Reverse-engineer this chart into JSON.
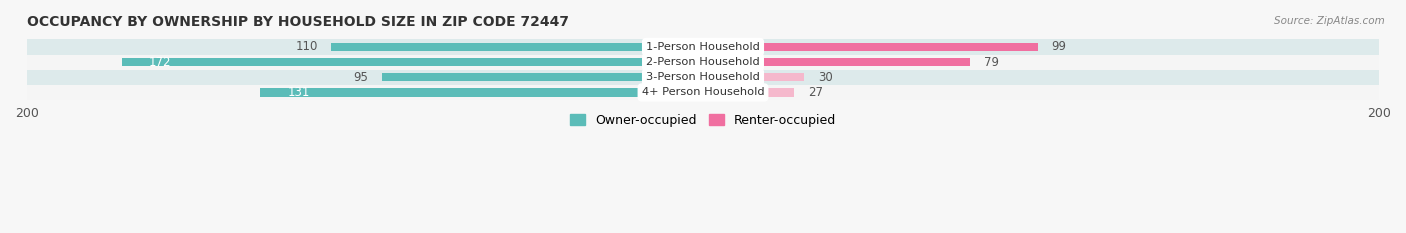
{
  "title": "OCCUPANCY BY OWNERSHIP BY HOUSEHOLD SIZE IN ZIP CODE 72447",
  "source": "Source: ZipAtlas.com",
  "categories": [
    "1-Person Household",
    "2-Person Household",
    "3-Person Household",
    "4+ Person Household"
  ],
  "owner_values": [
    110,
    172,
    95,
    131
  ],
  "renter_values": [
    99,
    79,
    30,
    27
  ],
  "owner_color": "#5bbcb8",
  "renter_colors": [
    "#f06fa0",
    "#f06fa0",
    "#f5b8cc",
    "#f5b8cc"
  ],
  "axis_max": 200,
  "bar_height": 0.55,
  "title_fontsize": 10,
  "legend_fontsize": 9,
  "row_bg_colors": [
    "#e8eef0",
    "#ffffff",
    "#e8eef0",
    "#ffffff"
  ],
  "fig_bg_color": "#f7f7f7"
}
